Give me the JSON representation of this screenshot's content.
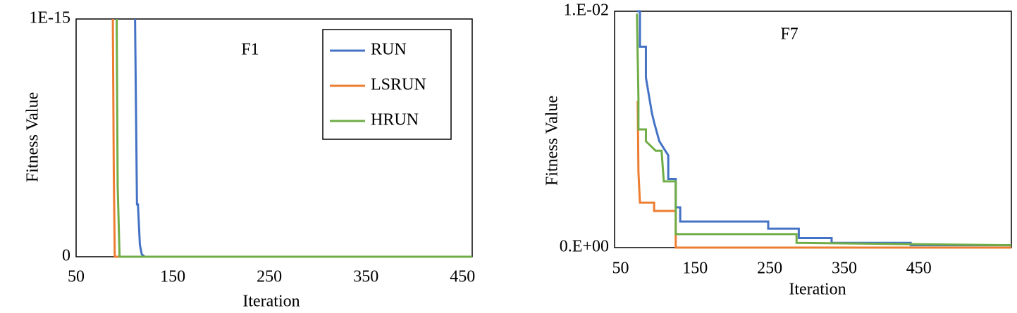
{
  "chart_data": [
    {
      "type": "line",
      "title": "F1",
      "x_label": "Iteration",
      "y_label": "Fitness Value",
      "xlim": [
        50,
        460
      ],
      "xticks": [
        50,
        150,
        250,
        350,
        450
      ],
      "ylim": [
        0,
        1e-15
      ],
      "yticks": [
        0,
        {
          "value": 1e-15,
          "label": "1E-15"
        }
      ],
      "legend": "upper right",
      "series": [
        {
          "name": "RUN",
          "color": "#4472c4",
          "x": [
            111,
            113,
            114,
            116,
            118,
            121,
            460
          ],
          "values": [
            1e-15,
            2.2e-16,
            2.2e-16,
            5e-17,
            1e-17,
            0,
            0
          ]
        },
        {
          "name": "LSRUN",
          "color": "#ed7d31",
          "x": [
            88,
            89,
            90,
            460
          ],
          "values": [
            1e-15,
            3.5e-16,
            0,
            0
          ]
        },
        {
          "name": "HRUN",
          "color": "#70ad47",
          "x": [
            92,
            93,
            95,
            460
          ],
          "values": [
            1e-15,
            3e-16,
            0,
            0
          ]
        }
      ]
    },
    {
      "type": "line",
      "title": "F7",
      "x_label": "Iteration",
      "y_label": "Fitness Value",
      "xlim": [
        42,
        574
      ],
      "xticks": [
        50,
        150,
        250,
        350,
        450
      ],
      "ylim": [
        0,
        0.01
      ],
      "yticks": [
        {
          "value": 0,
          "label": "0.E+00"
        },
        {
          "value": 0.01,
          "label": "1.E-02"
        }
      ],
      "series": [
        {
          "color": "#4472c4",
          "x": [
            72,
            76,
            76,
            84,
            84,
            92,
            95,
            102,
            114,
            114,
            124,
            124,
            130,
            130,
            248,
            248,
            289,
            289,
            333,
            333,
            439,
            439,
            574
          ],
          "values": [
            0.01,
            0.01,
            0.0085,
            0.0085,
            0.0072,
            0.0057,
            0.0053,
            0.0045,
            0.0039,
            0.0029,
            0.0029,
            0.0017,
            0.0017,
            0.0011,
            0.0011,
            0.0008,
            0.0008,
            0.0004,
            0.0004,
            0.0002,
            0.0002,
            0.0001,
            0.0001
          ]
        },
        {
          "color": "#ed7d31",
          "x": [
            73,
            74,
            76,
            95,
            95,
            124,
            124,
            574
          ],
          "values": [
            0.0062,
            0.0032,
            0.0019,
            0.0019,
            0.00155,
            0.00155,
            0,
            0
          ]
        },
        {
          "color": "#70ad47",
          "x": [
            72,
            74,
            74,
            84,
            84,
            97,
            105,
            108,
            119,
            124,
            124,
            286,
            286,
            574
          ],
          "values": [
            0.0099,
            0.0063,
            0.005,
            0.005,
            0.0045,
            0.0041,
            0.0041,
            0.0028,
            0.0028,
            0.0028,
            0.00057,
            0.00057,
            0.0002,
            0.0001
          ]
        }
      ]
    }
  ]
}
